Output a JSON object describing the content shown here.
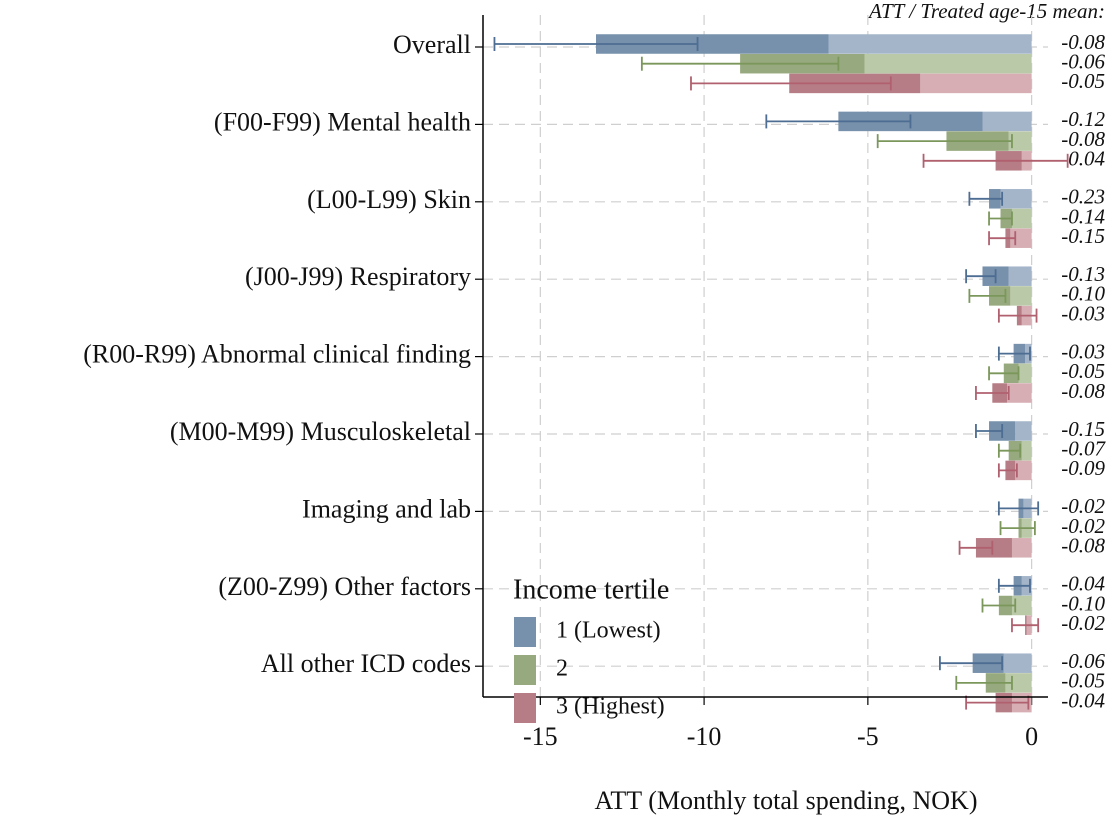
{
  "chart_data": {
    "type": "bar",
    "orientation": "horizontal",
    "header": "ATT / Treated age-15 mean:",
    "xlabel": "ATT (Monthly total spending, NOK)",
    "legend_title": "Income tertile",
    "categories": [
      "Overall",
      "(F00-F99) Mental health",
      "(L00-L99) Skin",
      "(J00-J99) Respiratory",
      "(R00-R99) Abnormal clinical finding",
      "(M00-M99) Musculoskeletal",
      "Imaging and lab",
      "(Z00-Z99) Other factors",
      "All other ICD codes"
    ],
    "series": [
      {
        "name": "1 (Lowest)",
        "color": "#7790ab",
        "light_color": "#a4b5c9",
        "ci_color": "#4d6d92",
        "values": [
          -13.3,
          -5.9,
          -1.3,
          -1.5,
          -0.55,
          -1.3,
          -0.4,
          -0.55,
          -1.8
        ],
        "inner_values": [
          -6.2,
          -1.5,
          -0.95,
          -0.7,
          -0.2,
          -0.5,
          -0.25,
          -0.3,
          -0.85
        ],
        "ci_low": [
          -16.4,
          -8.1,
          -1.9,
          -2.0,
          -1.0,
          -1.7,
          -1.0,
          -1.0,
          -2.8
        ],
        "ci_high": [
          -10.2,
          -3.7,
          -0.9,
          -1.1,
          -0.05,
          -0.9,
          0.2,
          -0.05,
          -0.9
        ],
        "ratios": [
          -0.08,
          -0.12,
          -0.23,
          -0.13,
          -0.03,
          -0.15,
          -0.02,
          -0.04,
          -0.06
        ],
        "ratio_labels": [
          "-0.08",
          "-0.12",
          "-0.23",
          "-0.13",
          "-0.03",
          "-0.15",
          "-0.02",
          "-0.04",
          "-0.06"
        ]
      },
      {
        "name": "2",
        "color": "#97a97e",
        "light_color": "#bac9a8",
        "ci_color": "#7b975b",
        "values": [
          -8.9,
          -2.6,
          -0.95,
          -1.3,
          -0.85,
          -0.7,
          -0.4,
          -1.0,
          -1.4
        ],
        "inner_values": [
          -5.1,
          -0.7,
          -0.6,
          -0.65,
          -0.4,
          -0.3,
          -0.3,
          -0.6,
          -0.8
        ],
        "ci_low": [
          -11.9,
          -4.7,
          -1.3,
          -1.9,
          -1.3,
          -1.0,
          -0.95,
          -1.5,
          -2.3
        ],
        "ci_high": [
          -5.9,
          -0.6,
          -0.6,
          -0.8,
          -0.4,
          -0.35,
          0.1,
          -0.5,
          -0.6
        ],
        "ratios": [
          -0.06,
          -0.08,
          -0.14,
          -0.1,
          -0.05,
          -0.07,
          -0.02,
          -0.1,
          -0.05
        ],
        "ratio_labels": [
          "-0.06",
          "-0.08",
          "-0.14",
          "-0.10",
          "-0.05",
          "-0.07",
          "-0.02",
          "-0.10",
          "-0.05"
        ]
      },
      {
        "name": "3 (Highest)",
        "color": "#b67d86",
        "light_color": "#d6aeb3",
        "ci_color": "#b0606f",
        "values": [
          -7.4,
          -1.1,
          -0.8,
          -0.45,
          -1.2,
          -0.8,
          -1.7,
          -0.2,
          -1.1
        ],
        "inner_values": [
          -3.4,
          -0.3,
          -0.65,
          -0.3,
          -0.75,
          -0.5,
          -0.6,
          -0.15,
          -0.6
        ],
        "ci_low": [
          -10.4,
          -3.3,
          -1.3,
          -1.0,
          -1.7,
          -1.0,
          -2.2,
          -0.6,
          -2.0
        ],
        "ci_high": [
          -4.3,
          1.1,
          -0.5,
          0.15,
          -0.7,
          -0.45,
          -1.2,
          0.2,
          -0.1
        ],
        "ratios": [
          -0.05,
          0.04,
          -0.15,
          -0.03,
          -0.08,
          -0.09,
          -0.08,
          -0.02,
          -0.04
        ],
        "ratio_labels": [
          "-0.05",
          "0.04",
          "-0.15",
          "-0.03",
          "-0.08",
          "-0.09",
          "-0.08",
          "-0.02",
          "-0.04"
        ]
      }
    ],
    "xlim": [
      -16.75,
      0.5
    ],
    "xticks": [
      -15,
      -10,
      -5,
      0
    ],
    "grid": true
  }
}
